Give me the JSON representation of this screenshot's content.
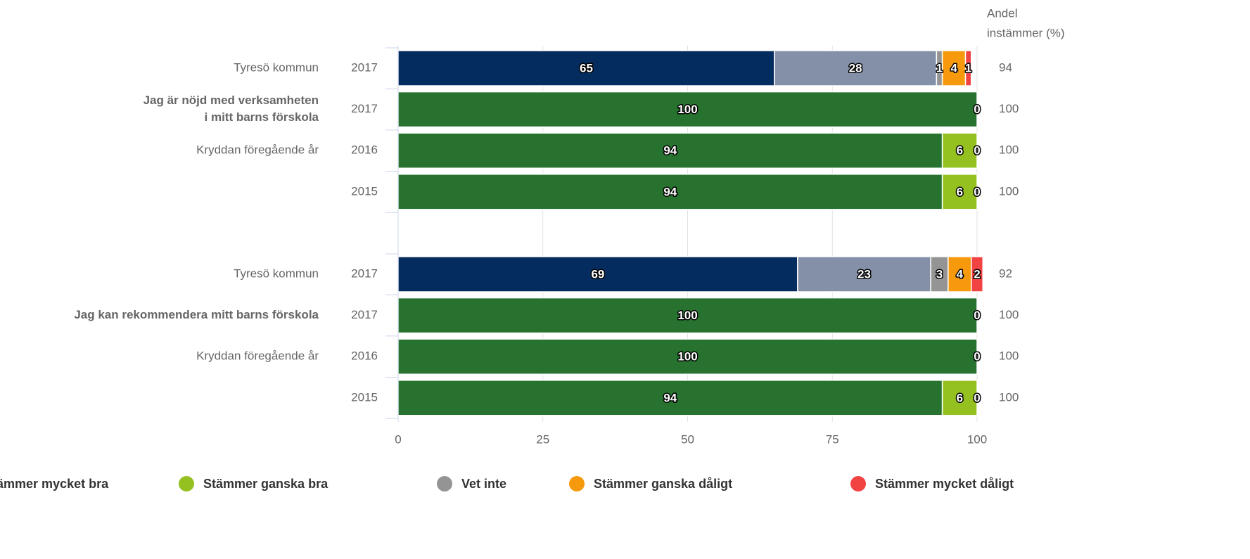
{
  "chart_data": {
    "type": "stacked_bar_horizontal",
    "xlim": [
      0,
      100
    ],
    "xticks": [
      0,
      25,
      50,
      75,
      100
    ],
    "grid": true,
    "agree_header": [
      "Andel",
      "instämmer (%)"
    ],
    "series": [
      {
        "name": "Stämmer mycket bra",
        "color": "#26722e"
      },
      {
        "name": "Stämmer ganska bra",
        "color": "#94c11f"
      },
      {
        "name": "Vet inte",
        "color": "#949494"
      },
      {
        "name": "Stämmer ganska dåligt",
        "color": "#f7990c"
      },
      {
        "name": "Stämmer mycket dåligt",
        "color": "#f24343"
      }
    ],
    "groups": [
      {
        "question": [
          "Jag är nöjd med verksamheten",
          "i mitt barns förskola"
        ],
        "rows": [
          {
            "label": "Tyresö kommun",
            "year": "2017",
            "values": [
              65,
              28,
              1,
              4,
              1
            ],
            "agree": 94,
            "colors": [
              "#052c5e",
              "#8490a8",
              "#949494",
              "#f7990c",
              "#f24343"
            ]
          },
          {
            "year": "2017",
            "values": [
              100,
              0,
              null,
              null,
              null
            ],
            "agree": 100
          },
          {
            "label": "Kryddan föregående år",
            "year": "2016",
            "values": [
              94,
              6,
              0,
              null,
              null
            ],
            "agree": 100
          },
          {
            "year": "2015",
            "values": [
              94,
              6,
              0,
              null,
              null
            ],
            "agree": 100
          }
        ]
      },
      {
        "question": [
          "Jag kan rekommendera mitt barns förskola"
        ],
        "rows": [
          {
            "label": "Tyresö kommun",
            "year": "2017",
            "values": [
              69,
              23,
              3,
              4,
              2
            ],
            "agree": 92,
            "colors": [
              "#052c5e",
              "#8490a8",
              "#949494",
              "#f7990c",
              "#f24343"
            ]
          },
          {
            "year": "2017",
            "values": [
              100,
              0,
              null,
              null,
              null
            ],
            "agree": 100
          },
          {
            "label": "Kryddan föregående år",
            "year": "2016",
            "values": [
              100,
              0,
              null,
              null,
              null
            ],
            "agree": 100
          },
          {
            "year": "2015",
            "values": [
              94,
              6,
              0,
              null,
              null
            ],
            "agree": 100
          }
        ]
      }
    ]
  }
}
